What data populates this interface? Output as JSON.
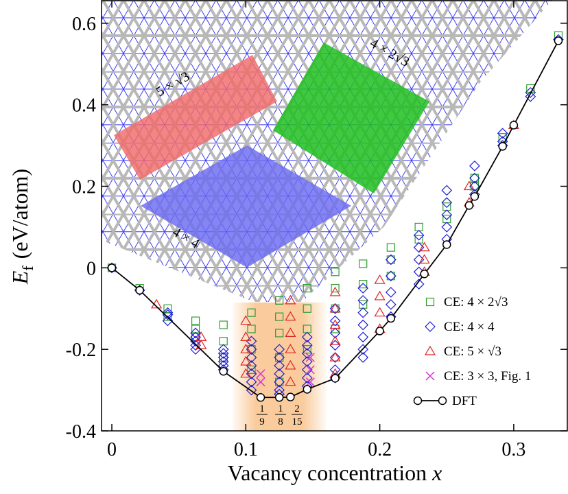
{
  "chart_data": {
    "type": "scatter",
    "x_label": {
      "text": "Vacancy concentration",
      "variable": "x"
    },
    "y_label": {
      "symbol": "E",
      "subscript": "f",
      "unit": "(eV/atom)"
    },
    "xlim": [
      -0.0077,
      0.3405
    ],
    "ylim": [
      -0.4,
      0.657
    ],
    "xticks": [
      0,
      0.1,
      0.2,
      0.3
    ],
    "yticks": [
      -0.4,
      -0.2,
      0,
      0.2,
      0.4,
      0.6
    ],
    "legend_position": "lower right",
    "highlight": {
      "xlim": [
        0.09,
        0.16
      ],
      "ylim": [
        -0.4,
        -0.085
      ],
      "color": "#f5a04a"
    },
    "fraction_labels": [
      {
        "numerator": "1",
        "denominator": "9"
      },
      {
        "numerator": "1",
        "denominator": "8"
      },
      {
        "numerator": "2",
        "denominator": "15"
      }
    ],
    "inset": {
      "labels": [
        "5 × √3",
        "4 × 2√3",
        "4 × 4"
      ]
    },
    "series": [
      {
        "name": "CE: 4 × 2√3",
        "color": "#2e9e2e",
        "marker": "square",
        "x": [
          0,
          0.0208,
          0.0417,
          0.0417,
          0.0625,
          0.0625,
          0.0625,
          0.0833,
          0.0833,
          0.0833,
          0.1042,
          0.1042,
          0.1042,
          0.1042,
          0.125,
          0.125,
          0.125,
          0.125,
          0.125,
          0.1458,
          0.1458,
          0.1458,
          0.1458,
          0.1667,
          0.1667,
          0.1667,
          0.1667,
          0.1875,
          0.1875,
          0.1875,
          0.2083,
          0.2083,
          0.2083,
          0.2292,
          0.2292,
          0.25,
          0.25,
          0.2708,
          0.2708,
          0.2917,
          0.3125,
          0.3333
        ],
        "values": [
          0,
          -0.05,
          -0.1,
          -0.12,
          -0.13,
          -0.15,
          -0.17,
          -0.14,
          -0.18,
          -0.22,
          -0.11,
          -0.15,
          -0.2,
          -0.25,
          -0.08,
          -0.12,
          -0.16,
          -0.22,
          -0.28,
          -0.05,
          -0.1,
          -0.15,
          -0.2,
          -0.01,
          -0.05,
          -0.1,
          -0.15,
          0.01,
          -0.04,
          -0.09,
          0.05,
          0.02,
          -0.02,
          0.1,
          0.07,
          0.15,
          0.12,
          0.22,
          0.2,
          0.32,
          0.44,
          0.57
        ]
      },
      {
        "name": "CE: 4 × 4",
        "color": "#1c1cdc",
        "marker": "diamond",
        "x": [
          0,
          0.0208,
          0.0417,
          0.0417,
          0.0417,
          0.0625,
          0.0625,
          0.0625,
          0.0625,
          0.0625,
          0.0833,
          0.0833,
          0.0833,
          0.0833,
          0.0833,
          0.0833,
          0.1042,
          0.1042,
          0.1042,
          0.1042,
          0.1042,
          0.1042,
          0.1042,
          0.125,
          0.125,
          0.125,
          0.125,
          0.125,
          0.125,
          0.125,
          0.1458,
          0.1458,
          0.1458,
          0.1458,
          0.1458,
          0.1458,
          0.1458,
          0.1667,
          0.1667,
          0.1667,
          0.1667,
          0.1667,
          0.1667,
          0.1667,
          0.1875,
          0.1875,
          0.1875,
          0.1875,
          0.1875,
          0.1875,
          0.1875,
          0.2083,
          0.2083,
          0.2083,
          0.2083,
          0.2083,
          0.2292,
          0.2292,
          0.2292,
          0.2292,
          0.2292,
          0.25,
          0.25,
          0.25,
          0.25,
          0.25,
          0.2708,
          0.2708,
          0.2708,
          0.2708,
          0.2917,
          0.2917,
          0.2917,
          0.3125,
          0.3125,
          0.3333
        ],
        "values": [
          0,
          -0.055,
          -0.11,
          -0.115,
          -0.13,
          -0.16,
          -0.17,
          -0.18,
          -0.19,
          -0.2,
          -0.2,
          -0.21,
          -0.22,
          -0.23,
          -0.24,
          -0.25,
          -0.18,
          -0.2,
          -0.22,
          -0.24,
          -0.26,
          -0.28,
          -0.3,
          -0.2,
          -0.22,
          -0.24,
          -0.26,
          -0.28,
          -0.3,
          -0.31,
          -0.17,
          -0.19,
          -0.21,
          -0.23,
          -0.25,
          -0.27,
          -0.29,
          -0.1,
          -0.13,
          -0.16,
          -0.19,
          -0.22,
          -0.25,
          -0.27,
          -0.05,
          -0.08,
          -0.11,
          -0.14,
          -0.17,
          -0.2,
          -0.22,
          0.02,
          -0.02,
          -0.06,
          -0.09,
          -0.12,
          0.08,
          0.05,
          0.02,
          -0.01,
          -0.04,
          0.19,
          0.16,
          0.13,
          0.1,
          0.07,
          0.25,
          0.22,
          0.2,
          0.18,
          0.33,
          0.31,
          0.3,
          0.43,
          0.42,
          0.56
        ]
      },
      {
        "name": "CE: 5 × √3",
        "color": "#e02424",
        "marker": "triangle",
        "x": [
          0.0333,
          0.0667,
          0.0667,
          0.1,
          0.1,
          0.1,
          0.1,
          0.1,
          0.1333,
          0.1333,
          0.1333,
          0.1333,
          0.1333,
          0.1333,
          0.1667,
          0.1667,
          0.1667,
          0.1667,
          0.1667,
          0.1667,
          0.2,
          0.2,
          0.2,
          0.2,
          0.2333,
          0.2333,
          0.2333,
          0.2667,
          0.2667,
          0.3
        ],
        "values": [
          -0.09,
          -0.17,
          -0.19,
          -0.13,
          -0.17,
          -0.2,
          -0.23,
          -0.26,
          -0.08,
          -0.12,
          -0.16,
          -0.2,
          -0.24,
          -0.28,
          -0.06,
          -0.1,
          -0.14,
          -0.18,
          -0.22,
          -0.26,
          -0.03,
          -0.07,
          -0.11,
          -0.15,
          0.05,
          0.02,
          -0.01,
          0.2,
          0.16,
          0.35
        ]
      },
      {
        "name": "CE: 3 × 3, Fig. 1",
        "color": "#d535d5",
        "marker": "x",
        "x": [
          0.1111,
          0.1111,
          0.1481,
          0.1481,
          0.1481
        ],
        "values": [
          -0.26,
          -0.28,
          -0.22,
          -0.25,
          -0.28
        ]
      },
      {
        "name": "DFT",
        "color": "#000000",
        "marker": "circle",
        "line": true,
        "x": [
          0,
          0.0208,
          0.0833,
          0.1111,
          0.125,
          0.1333,
          0.1458,
          0.1667,
          0.2,
          0.2083,
          0.2333,
          0.25,
          0.2667,
          0.2708,
          0.2917,
          0.3,
          0.3333
        ],
        "values": [
          0,
          -0.055,
          -0.254,
          -0.318,
          -0.318,
          -0.317,
          -0.298,
          -0.271,
          -0.155,
          -0.124,
          -0.015,
          0.057,
          0.153,
          0.175,
          0.298,
          0.35,
          0.557
        ]
      }
    ]
  }
}
